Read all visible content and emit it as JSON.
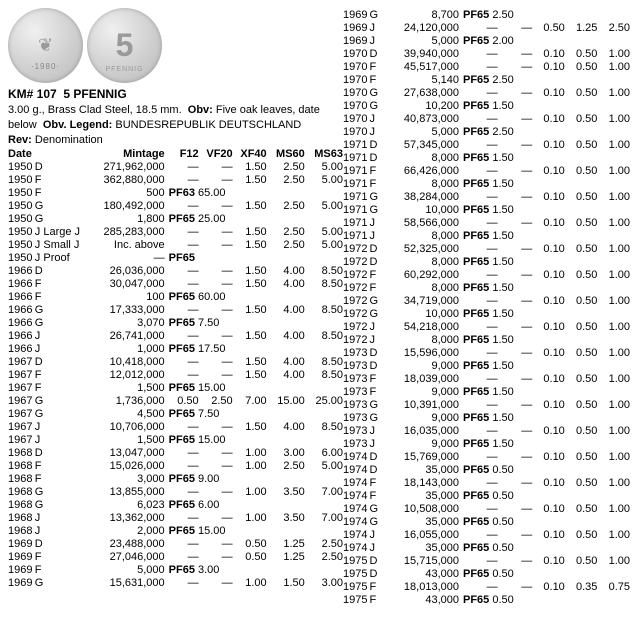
{
  "coin_obv_year": "·1980·",
  "km_number": "KM# 107",
  "denomination": "5 PFENNIG",
  "spec_line": "3.00 g., Brass Clad Steel, 18.5 mm.",
  "obv_label": "Obv:",
  "obv_text": "Five oak leaves, date below",
  "legend_label": "Obv. Legend:",
  "legend_text": "BUNDESREPUBLIK DEUTSCHLAND",
  "rev_label": "Rev:",
  "rev_text": "Denomination",
  "headers": {
    "date": "Date",
    "mint": "Mintage",
    "f12": "F12",
    "vf20": "VF20",
    "xf40": "XF40",
    "ms60": "MS60",
    "ms63": "MS63"
  },
  "left_rows": [
    {
      "d": "1950",
      "m": "D",
      "mint": "271,962,000",
      "c": [
        "—",
        "—",
        "1.50",
        "2.50",
        "5.00"
      ]
    },
    {
      "d": "1950",
      "m": "F",
      "mint": "362,880,000",
      "c": [
        "—",
        "—",
        "1.50",
        "2.50",
        "5.00"
      ]
    },
    {
      "d": "1950",
      "m": "F",
      "mint": "500",
      "pf": "PF63",
      "pfv": "65.00"
    },
    {
      "d": "1950",
      "m": "G",
      "mint": "180,492,000",
      "c": [
        "—",
        "—",
        "1.50",
        "2.50",
        "5.00"
      ]
    },
    {
      "d": "1950",
      "m": "G",
      "mint": "1,800",
      "pf": "PF65",
      "pfv": "25.00"
    },
    {
      "d": "1950",
      "m": "J Large J",
      "mint": "285,283,000",
      "c": [
        "—",
        "—",
        "1.50",
        "2.50",
        "5.00"
      ]
    },
    {
      "d": "1950",
      "m": "J Small J",
      "mint": "Inc. above",
      "c": [
        "—",
        "—",
        "1.50",
        "2.50",
        "5.00"
      ]
    },
    {
      "d": "1950",
      "m": "J Proof",
      "mint": "—",
      "pf": "PF65",
      "pfv": ""
    },
    {
      "d": "1966",
      "m": "D",
      "mint": "26,036,000",
      "c": [
        "—",
        "—",
        "1.50",
        "4.00",
        "8.50"
      ]
    },
    {
      "d": "1966",
      "m": "F",
      "mint": "30,047,000",
      "c": [
        "—",
        "—",
        "1.50",
        "4.00",
        "8.50"
      ]
    },
    {
      "d": "1966",
      "m": "F",
      "mint": "100",
      "pf": "PF65",
      "pfv": "60.00"
    },
    {
      "d": "1966",
      "m": "G",
      "mint": "17,333,000",
      "c": [
        "—",
        "—",
        "1.50",
        "4.00",
        "8.50"
      ]
    },
    {
      "d": "1966",
      "m": "G",
      "mint": "3,070",
      "pf": "PF65",
      "pfv": "7.50"
    },
    {
      "d": "1966",
      "m": "J",
      "mint": "26,741,000",
      "c": [
        "—",
        "—",
        "1.50",
        "4.00",
        "8.50"
      ]
    },
    {
      "d": "1966",
      "m": "J",
      "mint": "1,000",
      "pf": "PF65",
      "pfv": "17.50"
    },
    {
      "d": "1967",
      "m": "D",
      "mint": "10,418,000",
      "c": [
        "—",
        "—",
        "1.50",
        "4.00",
        "8.50"
      ]
    },
    {
      "d": "1967",
      "m": "F",
      "mint": "12,012,000",
      "c": [
        "—",
        "—",
        "1.50",
        "4.00",
        "8.50"
      ]
    },
    {
      "d": "1967",
      "m": "F",
      "mint": "1,500",
      "pf": "PF65",
      "pfv": "15.00"
    },
    {
      "d": "1967",
      "m": "G",
      "mint": "1,736,000",
      "c": [
        "0.50",
        "2.50",
        "7.00",
        "15.00",
        "25.00"
      ]
    },
    {
      "d": "1967",
      "m": "G",
      "mint": "4,500",
      "pf": "PF65",
      "pfv": "7.50"
    },
    {
      "d": "1967",
      "m": "J",
      "mint": "10,706,000",
      "c": [
        "—",
        "—",
        "1.50",
        "4.00",
        "8.50"
      ]
    },
    {
      "d": "1967",
      "m": "J",
      "mint": "1,500",
      "pf": "PF65",
      "pfv": "15.00"
    },
    {
      "d": "1968",
      "m": "D",
      "mint": "13,047,000",
      "c": [
        "—",
        "—",
        "1.00",
        "3.00",
        "6.00"
      ]
    },
    {
      "d": "1968",
      "m": "F",
      "mint": "15,026,000",
      "c": [
        "—",
        "—",
        "1.00",
        "2.50",
        "5.00"
      ]
    },
    {
      "d": "1968",
      "m": "F",
      "mint": "3,000",
      "pf": "PF65",
      "pfv": "9.00"
    },
    {
      "d": "1968",
      "m": "G",
      "mint": "13,855,000",
      "c": [
        "—",
        "—",
        "1.00",
        "3.50",
        "7.00"
      ]
    },
    {
      "d": "1968",
      "m": "G",
      "mint": "6,023",
      "pf": "PF65",
      "pfv": "6.00"
    },
    {
      "d": "1968",
      "m": "J",
      "mint": "13,362,000",
      "c": [
        "—",
        "—",
        "1.00",
        "3.50",
        "7.00"
      ]
    },
    {
      "d": "1968",
      "m": "J",
      "mint": "2,000",
      "pf": "PF65",
      "pfv": "15.00"
    },
    {
      "d": "1969",
      "m": "D",
      "mint": "23,488,000",
      "c": [
        "—",
        "—",
        "0.50",
        "1.25",
        "2.50"
      ]
    },
    {
      "d": "1969",
      "m": "F",
      "mint": "27,046,000",
      "c": [
        "—",
        "—",
        "0.50",
        "1.25",
        "2.50"
      ]
    },
    {
      "d": "1969",
      "m": "F",
      "mint": "5,000",
      "pf": "PF65",
      "pfv": "3.00"
    },
    {
      "d": "1969",
      "m": "G",
      "mint": "15,631,000",
      "c": [
        "—",
        "—",
        "1.00",
        "1.50",
        "3.00"
      ]
    }
  ],
  "right_rows": [
    {
      "d": "1969",
      "m": "G",
      "mint": "8,700",
      "pf": "PF65",
      "pfv": "2.50"
    },
    {
      "d": "1969",
      "m": "J",
      "mint": "24,120,000",
      "c": [
        "—",
        "—",
        "0.50",
        "1.25",
        "2.50"
      ]
    },
    {
      "d": "1969",
      "m": "J",
      "mint": "5,000",
      "pf": "PF65",
      "pfv": "2.00"
    },
    {
      "d": "1970",
      "m": "D",
      "mint": "39,940,000",
      "c": [
        "—",
        "—",
        "0.10",
        "0.50",
        "1.00"
      ]
    },
    {
      "d": "1970",
      "m": "F",
      "mint": "45,517,000",
      "c": [
        "—",
        "—",
        "0.10",
        "0.50",
        "1.00"
      ]
    },
    {
      "d": "1970",
      "m": "F",
      "mint": "5,140",
      "pf": "PF65",
      "pfv": "2.50"
    },
    {
      "d": "1970",
      "m": "G",
      "mint": "27,638,000",
      "c": [
        "—",
        "—",
        "0.10",
        "0.50",
        "1.00"
      ]
    },
    {
      "d": "1970",
      "m": "G",
      "mint": "10,200",
      "pf": "PF65",
      "pfv": "1.50"
    },
    {
      "d": "1970",
      "m": "J",
      "mint": "40,873,000",
      "c": [
        "—",
        "—",
        "0.10",
        "0.50",
        "1.00"
      ]
    },
    {
      "d": "1970",
      "m": "J",
      "mint": "5,000",
      "pf": "PF65",
      "pfv": "2.50"
    },
    {
      "d": "1971",
      "m": "D",
      "mint": "57,345,000",
      "c": [
        "—",
        "—",
        "0.10",
        "0.50",
        "1.00"
      ]
    },
    {
      "d": "1971",
      "m": "D",
      "mint": "8,000",
      "pf": "PF65",
      "pfv": "1.50"
    },
    {
      "d": "1971",
      "m": "F",
      "mint": "66,426,000",
      "c": [
        "—",
        "—",
        "0.10",
        "0.50",
        "1.00"
      ]
    },
    {
      "d": "1971",
      "m": "F",
      "mint": "8,000",
      "pf": "PF65",
      "pfv": "1.50"
    },
    {
      "d": "1971",
      "m": "G",
      "mint": "38,284,000",
      "c": [
        "—",
        "—",
        "0.10",
        "0.50",
        "1.00"
      ]
    },
    {
      "d": "1971",
      "m": "G",
      "mint": "10,000",
      "pf": "PF65",
      "pfv": "1.50"
    },
    {
      "d": "1971",
      "m": "J",
      "mint": "58,566,000",
      "c": [
        "—",
        "—",
        "0.10",
        "0.50",
        "1.00"
      ]
    },
    {
      "d": "1971",
      "m": "J",
      "mint": "8,000",
      "pf": "PF65",
      "pfv": "1.50"
    },
    {
      "d": "1972",
      "m": "D",
      "mint": "52,325,000",
      "c": [
        "—",
        "—",
        "0.10",
        "0.50",
        "1.00"
      ]
    },
    {
      "d": "1972",
      "m": "D",
      "mint": "8,000",
      "pf": "PF65",
      "pfv": "1.50"
    },
    {
      "d": "1972",
      "m": "F",
      "mint": "60,292,000",
      "c": [
        "—",
        "—",
        "0.10",
        "0.50",
        "1.00"
      ]
    },
    {
      "d": "1972",
      "m": "F",
      "mint": "8,000",
      "pf": "PF65",
      "pfv": "1.50"
    },
    {
      "d": "1972",
      "m": "G",
      "mint": "34,719,000",
      "c": [
        "—",
        "—",
        "0.10",
        "0.50",
        "1.00"
      ]
    },
    {
      "d": "1972",
      "m": "G",
      "mint": "10,000",
      "pf": "PF65",
      "pfv": "1.50"
    },
    {
      "d": "1972",
      "m": "J",
      "mint": "54,218,000",
      "c": [
        "—",
        "—",
        "0.10",
        "0.50",
        "1.00"
      ]
    },
    {
      "d": "1972",
      "m": "J",
      "mint": "8,000",
      "pf": "PF65",
      "pfv": "1.50"
    },
    {
      "d": "1973",
      "m": "D",
      "mint": "15,596,000",
      "c": [
        "—",
        "—",
        "0.10",
        "0.50",
        "1.00"
      ]
    },
    {
      "d": "1973",
      "m": "D",
      "mint": "9,000",
      "pf": "PF65",
      "pfv": "1.50"
    },
    {
      "d": "1973",
      "m": "F",
      "mint": "18,039,000",
      "c": [
        "—",
        "—",
        "0.10",
        "0.50",
        "1.00"
      ]
    },
    {
      "d": "1973",
      "m": "F",
      "mint": "9,000",
      "pf": "PF65",
      "pfv": "1.50"
    },
    {
      "d": "1973",
      "m": "G",
      "mint": "10,391,000",
      "c": [
        "—",
        "—",
        "0.10",
        "0.50",
        "1.00"
      ]
    },
    {
      "d": "1973",
      "m": "G",
      "mint": "9,000",
      "pf": "PF65",
      "pfv": "1.50"
    },
    {
      "d": "1973",
      "m": "J",
      "mint": "16,035,000",
      "c": [
        "—",
        "—",
        "0.10",
        "0.50",
        "1.00"
      ]
    },
    {
      "d": "1973",
      "m": "J",
      "mint": "9,000",
      "pf": "PF65",
      "pfv": "1.50"
    },
    {
      "d": "1974",
      "m": "D",
      "mint": "15,769,000",
      "c": [
        "—",
        "—",
        "0.10",
        "0.50",
        "1.00"
      ]
    },
    {
      "d": "1974",
      "m": "D",
      "mint": "35,000",
      "pf": "PF65",
      "pfv": "0.50"
    },
    {
      "d": "1974",
      "m": "F",
      "mint": "18,143,000",
      "c": [
        "—",
        "—",
        "0.10",
        "0.50",
        "1.00"
      ]
    },
    {
      "d": "1974",
      "m": "F",
      "mint": "35,000",
      "pf": "PF65",
      "pfv": "0.50"
    },
    {
      "d": "1974",
      "m": "G",
      "mint": "10,508,000",
      "c": [
        "—",
        "—",
        "0.10",
        "0.50",
        "1.00"
      ]
    },
    {
      "d": "1974",
      "m": "G",
      "mint": "35,000",
      "pf": "PF65",
      "pfv": "0.50"
    },
    {
      "d": "1974",
      "m": "J",
      "mint": "16,055,000",
      "c": [
        "—",
        "—",
        "0.10",
        "0.50",
        "1.00"
      ]
    },
    {
      "d": "1974",
      "m": "J",
      "mint": "35,000",
      "pf": "PF65",
      "pfv": "0.50"
    },
    {
      "d": "1975",
      "m": "D",
      "mint": "15,715,000",
      "c": [
        "—",
        "—",
        "0.10",
        "0.50",
        "1.00"
      ]
    },
    {
      "d": "1975",
      "m": "D",
      "mint": "43,000",
      "pf": "PF65",
      "pfv": "0.50"
    },
    {
      "d": "1975",
      "m": "F",
      "mint": "18,013,000",
      "c": [
        "—",
        "—",
        "0.10",
        "0.35",
        "0.75"
      ]
    },
    {
      "d": "1975",
      "m": "F",
      "mint": "43,000",
      "pf": "PF65",
      "pfv": "0.50"
    }
  ]
}
